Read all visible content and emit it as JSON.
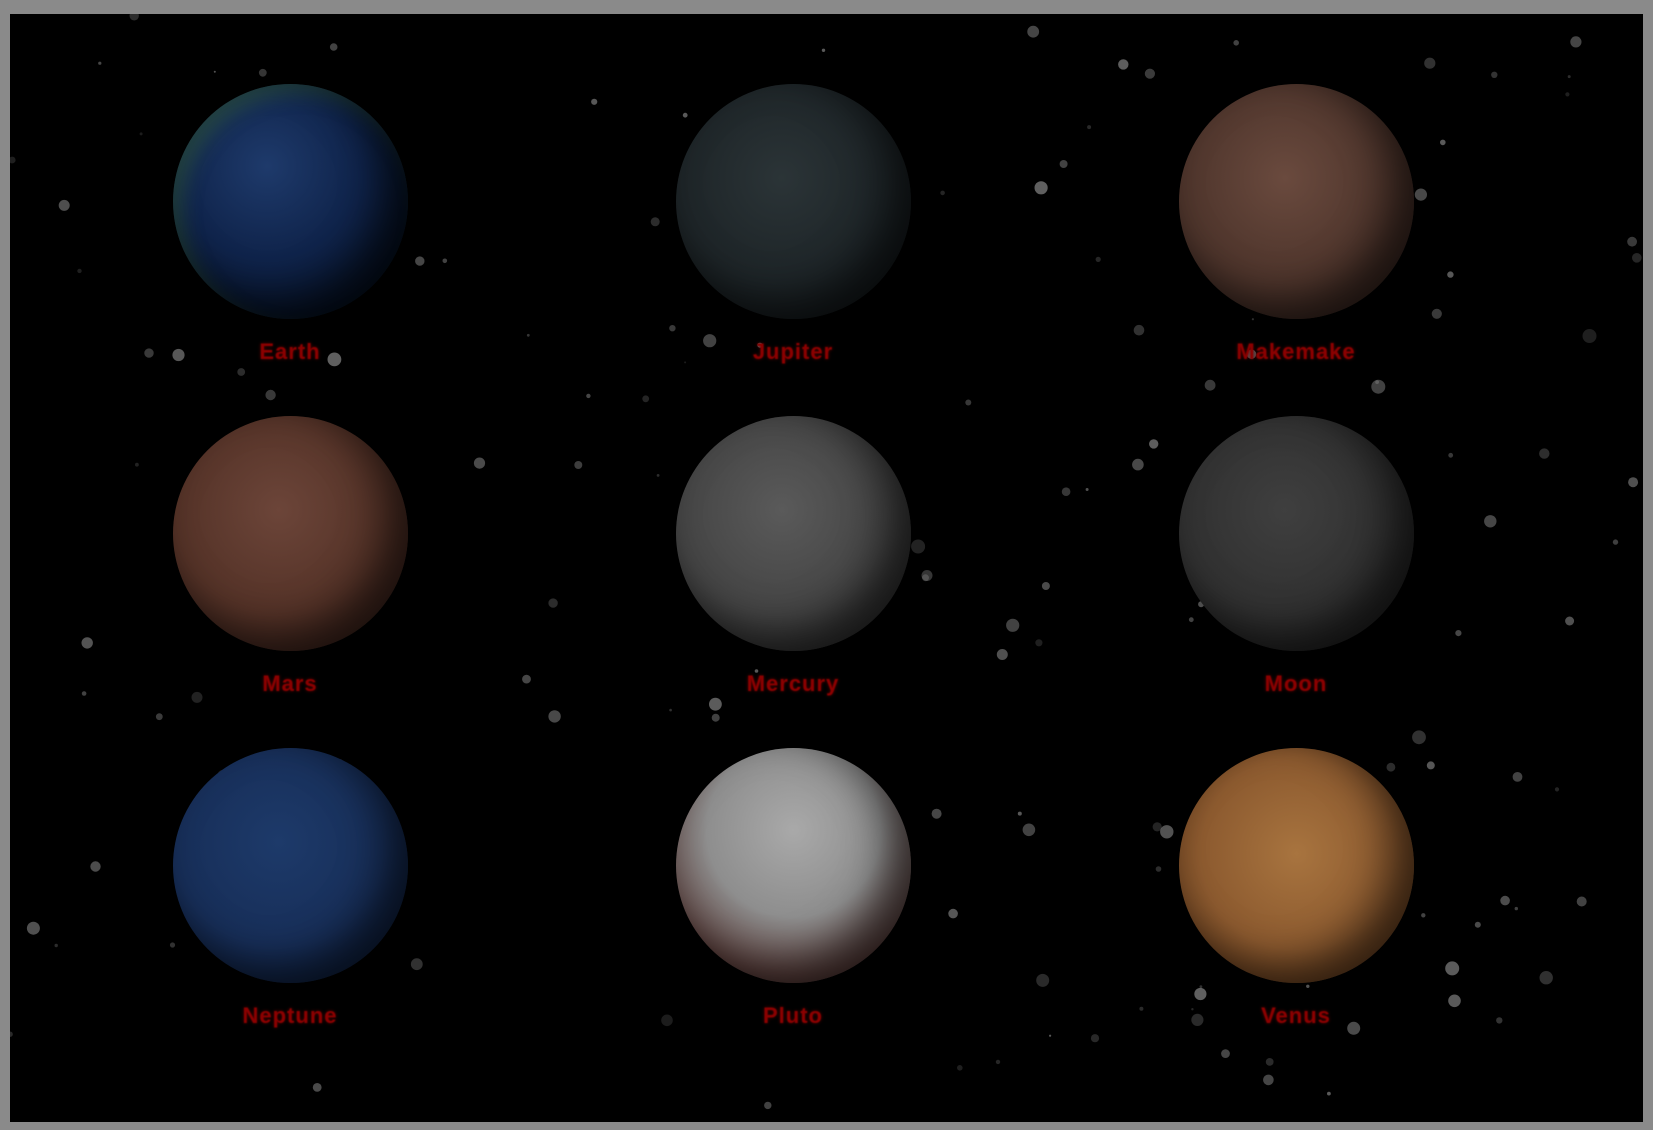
{
  "planets": [
    {
      "label": "Earth",
      "icon": "earth-icon",
      "color": "#0f234a"
    },
    {
      "label": "Jupiter",
      "icon": "jupiter-icon",
      "color": "#1d2427"
    },
    {
      "label": "Makemake",
      "icon": "makemake-icon",
      "color": "#4d342b"
    },
    {
      "label": "Mars",
      "icon": "mars-icon",
      "color": "#543227"
    },
    {
      "label": "Mercury",
      "icon": "mercury-icon",
      "color": "#444444"
    },
    {
      "label": "Moon",
      "icon": "moon-icon",
      "color": "#303030"
    },
    {
      "label": "Neptune",
      "icon": "neptune-icon",
      "color": "#172e58"
    },
    {
      "label": "Pluto",
      "icon": "pluto-icon",
      "color": "#8e8e8e"
    },
    {
      "label": "Venus",
      "icon": "venus-icon",
      "color": "#8c5a2f"
    }
  ],
  "colors": {
    "label": "#8b0000",
    "background": "#000000",
    "frame": "#8a8a8a"
  }
}
